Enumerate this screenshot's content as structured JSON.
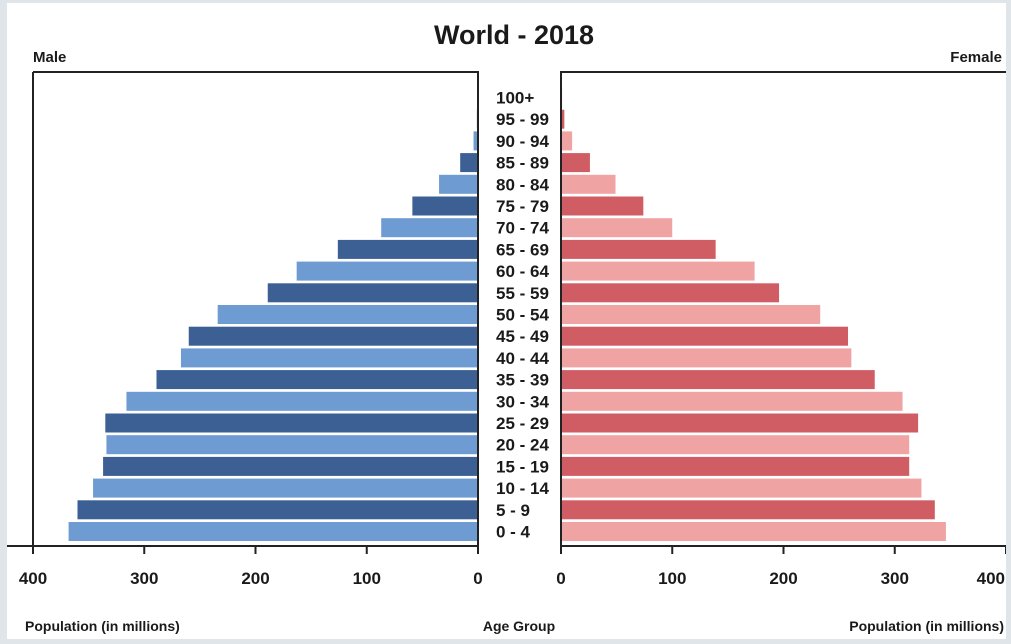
{
  "chart_data": {
    "type": "bar",
    "orientation": "horizontal",
    "layout": "population-pyramid",
    "title": "World - 2018",
    "left_label": "Male",
    "right_label": "Female",
    "center_axis_title": "Age Group",
    "left_axis_title": "Population (in millions)",
    "right_axis_title": "Population (in millions)",
    "categories": [
      "0 - 4",
      "5 - 9",
      "10 - 14",
      "15 - 19",
      "20 - 24",
      "25 - 29",
      "30 - 34",
      "35 - 39",
      "40 - 44",
      "45 - 49",
      "50 - 54",
      "55 - 59",
      "60 - 64",
      "65 - 69",
      "70 - 74",
      "75 - 79",
      "80 - 84",
      "85 - 89",
      "90 - 94",
      "95 - 99",
      "100+"
    ],
    "series": [
      {
        "name": "Male",
        "side": "left",
        "values": [
          368,
          360,
          346,
          337,
          334,
          335,
          316,
          289,
          267,
          260,
          234,
          189,
          163,
          126,
          87,
          59,
          35,
          16,
          4,
          1,
          0.5
        ],
        "colors": [
          "#6e9bd2",
          "#3c5f94"
        ]
      },
      {
        "name": "Female",
        "side": "right",
        "values": [
          346,
          336,
          324,
          313,
          313,
          321,
          307,
          282,
          261,
          258,
          233,
          196,
          174,
          139,
          100,
          74,
          49,
          26,
          10,
          3,
          1
        ],
        "colors": [
          "#f0a3a3",
          "#d05c64"
        ]
      }
    ],
    "xlim": [
      0,
      400
    ],
    "xticks": [
      "400",
      "300",
      "200",
      "100",
      "0"
    ],
    "xticks_right": [
      "0",
      "100",
      "200",
      "300",
      "400"
    ],
    "grid": false,
    "legend": "none"
  }
}
